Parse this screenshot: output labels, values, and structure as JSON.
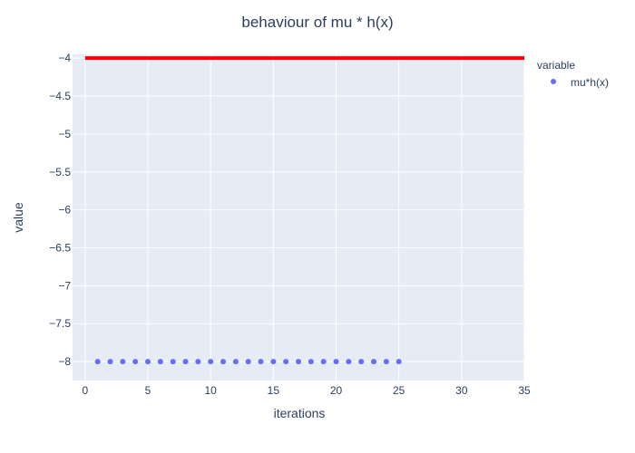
{
  "chart_data": {
    "type": "scatter",
    "title": "behaviour of mu * h(x)",
    "xlabel": "iterations",
    "ylabel": "value",
    "xlim": [
      -1,
      35
    ],
    "ylim": [
      -8.25,
      -3.95
    ],
    "x_ticks": [
      0,
      5,
      10,
      15,
      20,
      25,
      30,
      35
    ],
    "x_tick_labels": [
      "0",
      "5",
      "10",
      "15",
      "20",
      "25",
      "30",
      "35"
    ],
    "y_ticks": [
      -4,
      -4.5,
      -5,
      -5.5,
      -6,
      -6.5,
      -7,
      -7.5,
      -8
    ],
    "y_tick_labels": [
      "−4",
      "−4.5",
      "−5",
      "−5.5",
      "−6",
      "−6.5",
      "−7",
      "−7.5",
      "−8"
    ],
    "grid": true,
    "legend_placement": "top-right",
    "legend_title": "variable",
    "series": [
      {
        "name": "mu*h(x)",
        "color": "#636efa",
        "x": [
          1,
          2,
          3,
          4,
          5,
          6,
          7,
          8,
          9,
          10,
          11,
          12,
          13,
          14,
          15,
          16,
          17,
          18,
          19,
          20,
          21,
          22,
          23,
          24,
          25
        ],
        "y": [
          -8,
          -8,
          -8,
          -8,
          -8,
          -8,
          -8,
          -8,
          -8,
          -8,
          -8,
          -8,
          -8,
          -8,
          -8,
          -8,
          -8,
          -8,
          -8,
          -8,
          -8,
          -8,
          -8,
          -8,
          -8
        ]
      }
    ],
    "reference_line": {
      "y": -4,
      "x_range": [
        0,
        35
      ],
      "color": "#ff0000"
    },
    "colors": {
      "plot_background": "#e5ecf6",
      "grid": "#ffffff",
      "text": "#2a3f5f"
    }
  }
}
